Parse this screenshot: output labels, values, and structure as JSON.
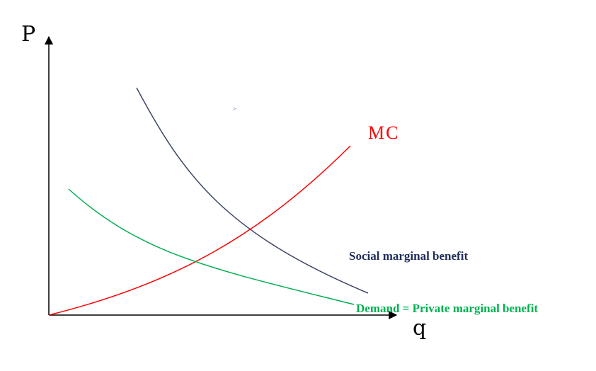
{
  "axes": {
    "y_label": "P",
    "x_label": "q"
  },
  "curves": {
    "mc": {
      "label": "MC",
      "color": "#ff0000"
    },
    "social": {
      "label": "Social marginal benefit",
      "color": "#1f2d5a",
      "line_color": "#3c4664"
    },
    "demand": {
      "label": "Demand = Private marginal benefit",
      "color": "#00b050"
    }
  },
  "stray_mark": {
    "text": ">",
    "color": "#8faadc"
  }
}
